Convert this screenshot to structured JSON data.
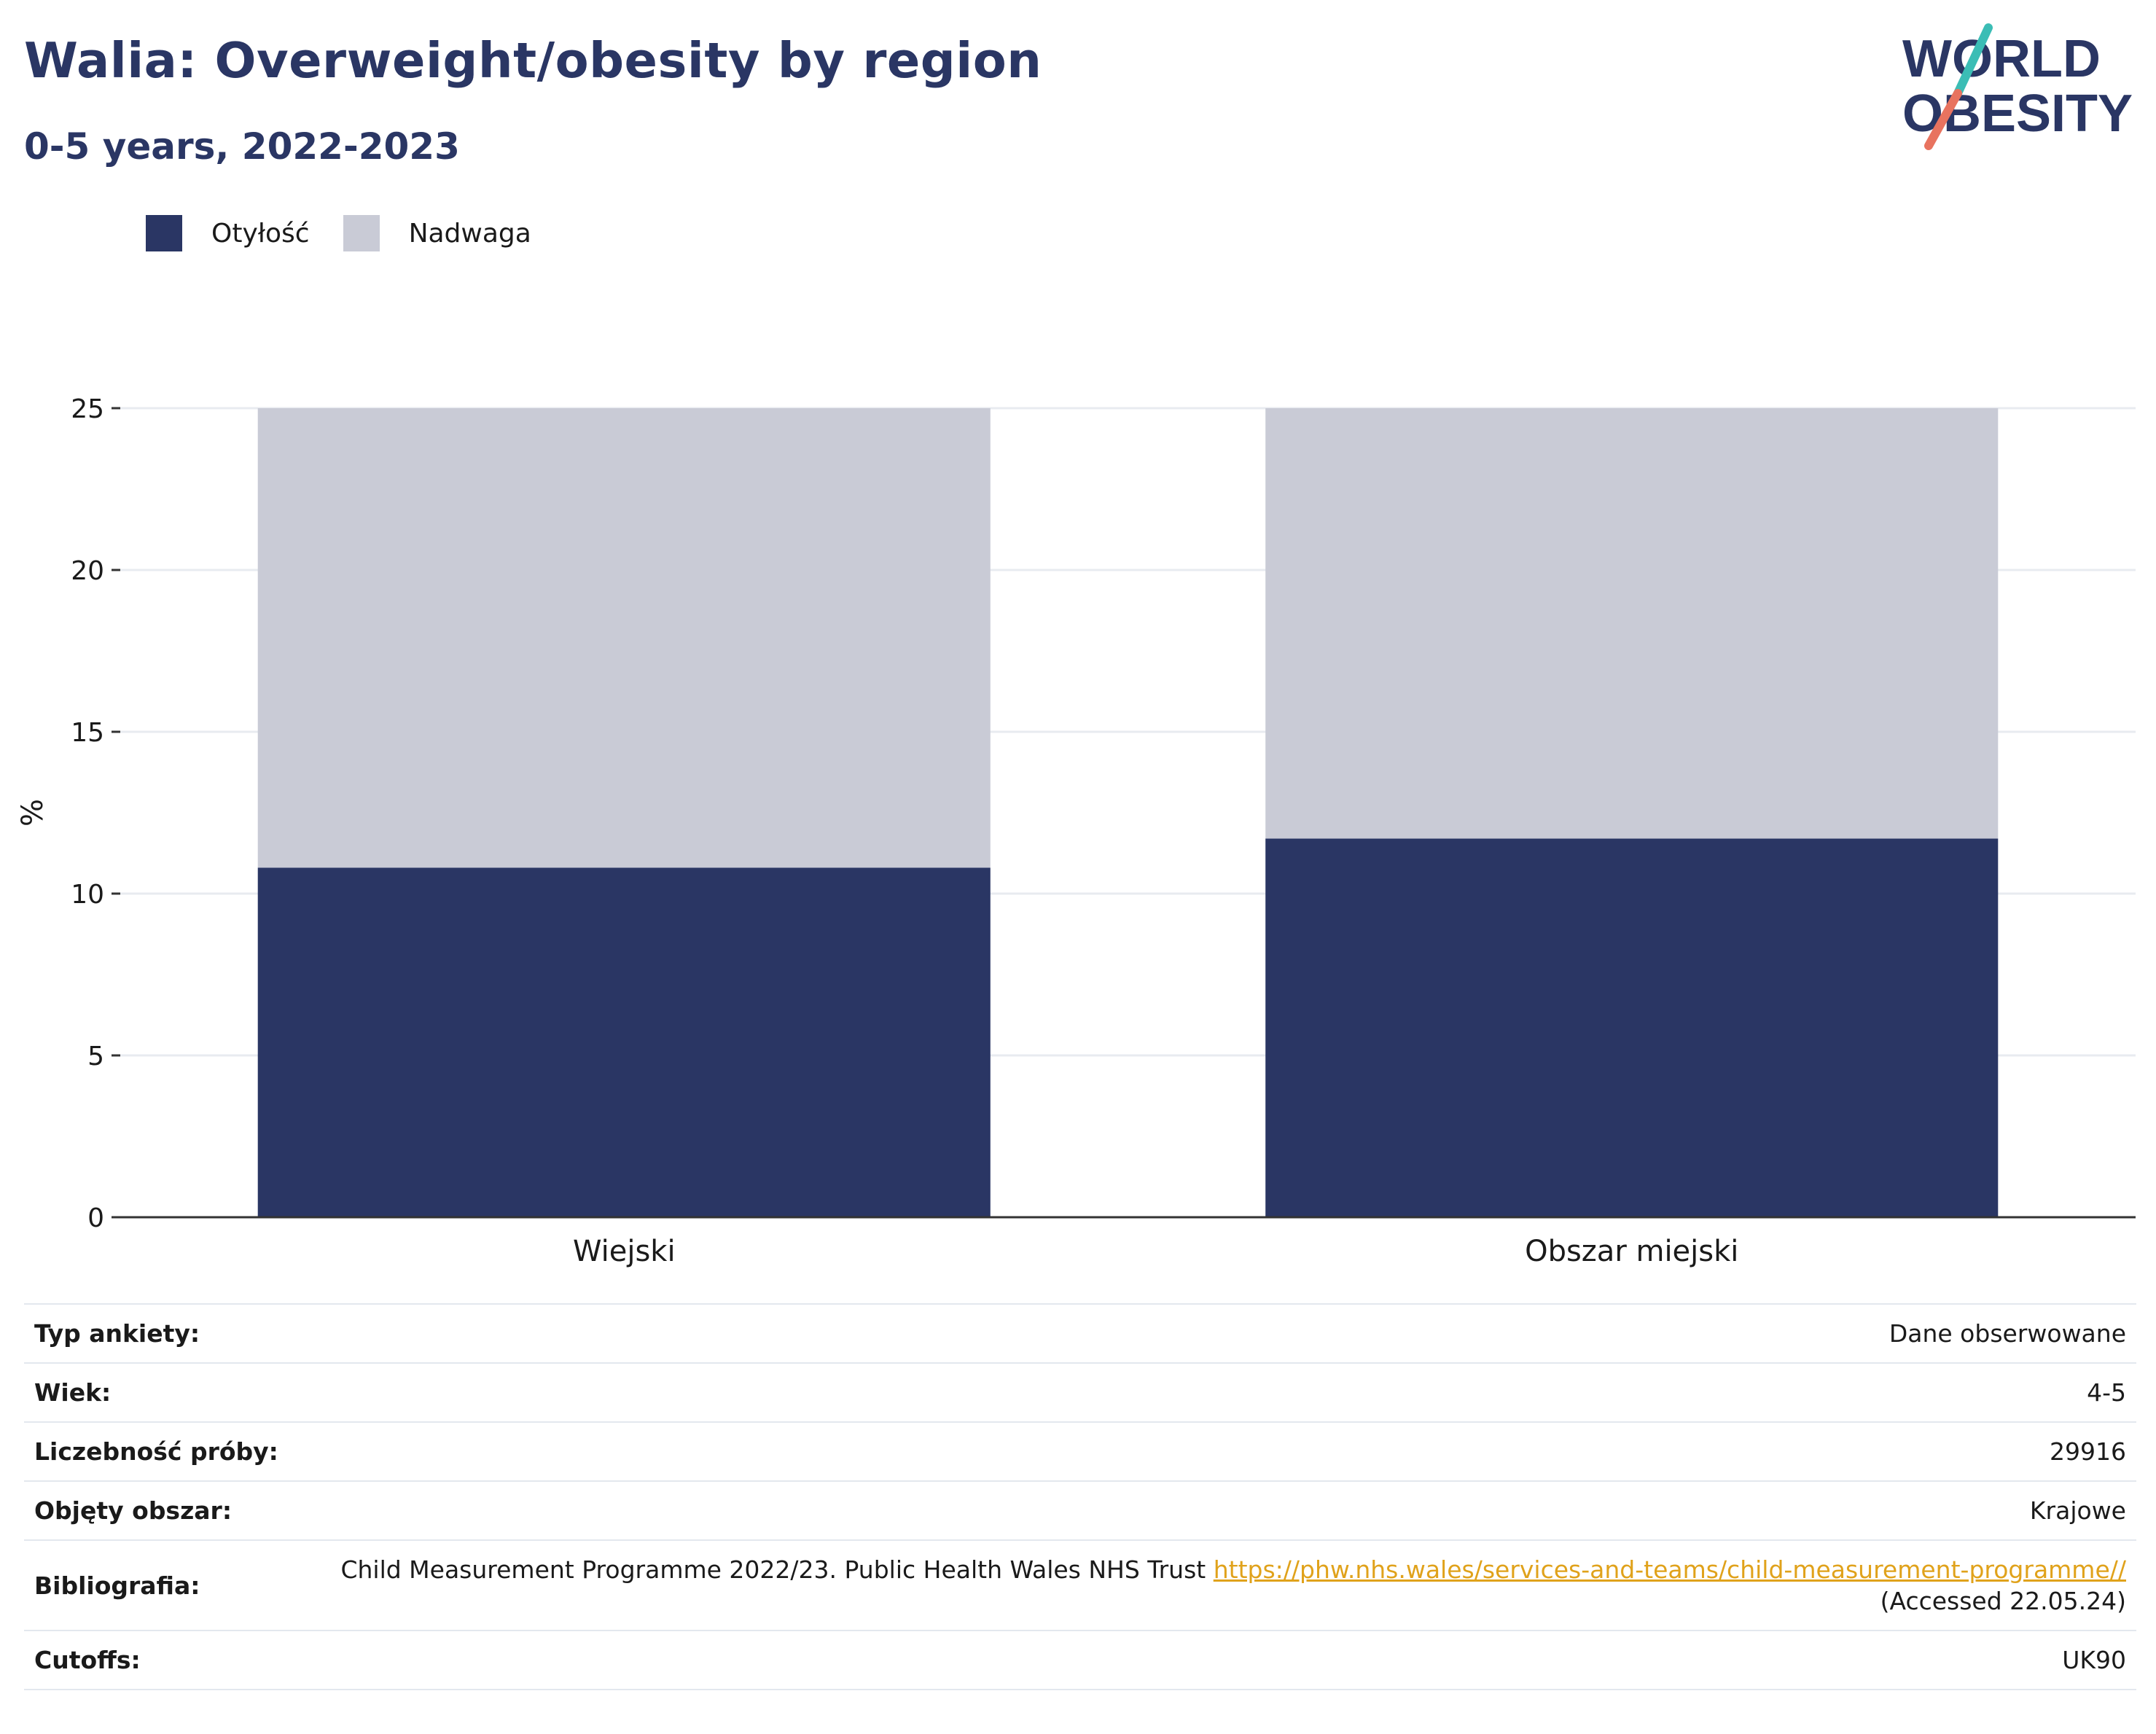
{
  "title": "Walia: Overweight/obesity by region",
  "subtitle": "0-5 years, 2022-2023",
  "logo": {
    "line1": "WORLD",
    "line2": "OBESITY"
  },
  "legend": [
    {
      "label": "Otyłość",
      "color": "#2a3664"
    },
    {
      "label": "Nadwaga",
      "color": "#c9cbd6"
    }
  ],
  "chart_data": {
    "type": "bar",
    "stacked": true,
    "categories": [
      "Wiejski",
      "Obszar miejski"
    ],
    "series": [
      {
        "name": "Otyłość",
        "color": "#2a3664",
        "values": [
          10.8,
          11.7
        ]
      },
      {
        "name": "Nadwaga",
        "color": "#c9cbd6",
        "values": [
          14.2,
          13.3
        ]
      }
    ],
    "ylabel": "%",
    "ylim": [
      0,
      25
    ],
    "yticks": [
      0,
      5,
      10,
      15,
      20,
      25
    ],
    "grid": true,
    "legend_position": "top-left"
  },
  "info": {
    "survey_type": {
      "label": "Typ ankiety:",
      "value": "Dane obserwowane"
    },
    "age": {
      "label": "Wiek:",
      "value": "4-5"
    },
    "sample_size": {
      "label": "Liczebność próby:",
      "value": "29916"
    },
    "coverage": {
      "label": "Objęty obszar:",
      "value": "Krajowe"
    },
    "bibliography": {
      "label": "Bibliografia:",
      "text": "Child Measurement Programme 2022/23. Public Health Wales NHS Trust",
      "link": "https://phw.nhs.wales/services-and-teams/child-measurement-programme//",
      "accessed": "(Accessed 22.05.24)"
    },
    "cutoffs": {
      "label": "Cutoffs:",
      "value": "UK90"
    }
  }
}
